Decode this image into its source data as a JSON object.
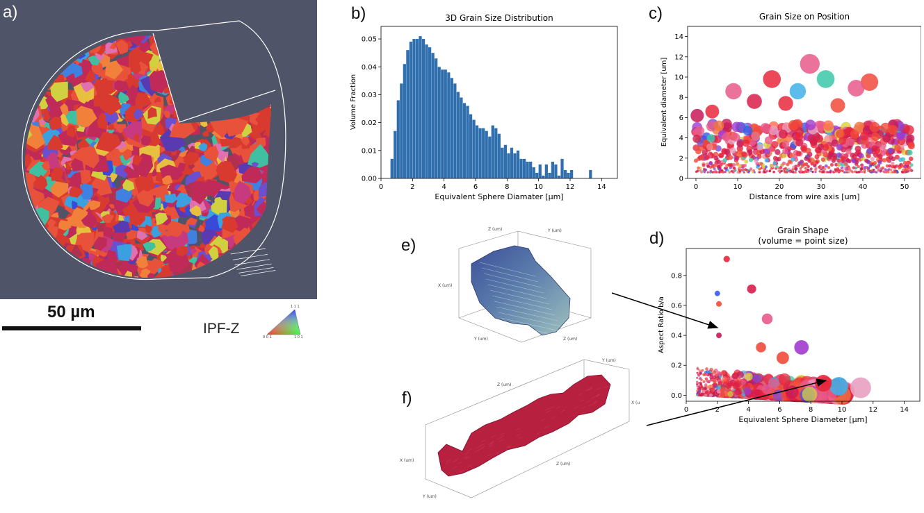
{
  "panels": {
    "a": {
      "letter": "a)",
      "scale_label": "50 µm",
      "legend_label": "IPF-Z"
    },
    "b": {
      "letter": "b)"
    },
    "c": {
      "letter": "c)"
    },
    "d": {
      "letter": "d)"
    },
    "e": {
      "letter": "e)",
      "axis_labels": {
        "x": "X (um)",
        "y": "Y (um)",
        "z": "Z (um)"
      }
    },
    "f": {
      "letter": "f)",
      "axis_labels": {
        "x": "X (um)",
        "y": "Y (um)",
        "z": "Z (um)"
      }
    }
  },
  "colors": {
    "hist": "#2f6fae",
    "microstructure_bg": "#4f5468",
    "grain_red": "#c8203a"
  },
  "chart_data": [
    {
      "id": "b",
      "type": "bar",
      "title": "3D Grain Size Distribution",
      "xlabel": "Equivalent Sphere Diamater [µm]",
      "ylabel": "Volume Fraction",
      "xlim": [
        0,
        15
      ],
      "ylim": [
        0,
        0.0545
      ],
      "xticks": [
        0,
        2,
        4,
        6,
        8,
        10,
        12,
        14
      ],
      "yticks": [
        0.0,
        0.01,
        0.02,
        0.03,
        0.04,
        0.05
      ],
      "ytick_labels": [
        "0.00",
        "0.01",
        "0.02",
        "0.03",
        "0.04",
        "0.05"
      ],
      "bin_width": 0.2,
      "bin_start": 0.6,
      "values": [
        0.007,
        0.017,
        0.028,
        0.034,
        0.041,
        0.046,
        0.049,
        0.05,
        0.05,
        0.051,
        0.05,
        0.048,
        0.047,
        0.045,
        0.043,
        0.04,
        0.039,
        0.039,
        0.038,
        0.036,
        0.034,
        0.031,
        0.029,
        0.027,
        0.026,
        0.023,
        0.021,
        0.019,
        0.018,
        0.018,
        0.017,
        0.015,
        0.019,
        0.018,
        0.016,
        0.011,
        0.012,
        0.009,
        0.011,
        0.009,
        0.01,
        0.007,
        0.007,
        0.006,
        0.006,
        0.004,
        0.002,
        0.005,
        0.001,
        0.005,
        0.002,
        0.006,
        0.005,
        0.001,
        0.007,
        0.003,
        0.002,
        0.003,
        0.0,
        0.0,
        0.0,
        0.0,
        0.0,
        0.003
      ]
    },
    {
      "id": "c",
      "type": "scatter",
      "title": "Grain Size on Position",
      "xlabel": "Distance from wire axis [um]",
      "ylabel": "Equivalent diameter [um]",
      "xlim": [
        -2,
        54
      ],
      "ylim": [
        0,
        15
      ],
      "xticks": [
        0,
        10,
        20,
        30,
        40,
        50
      ],
      "yticks": [
        0,
        2,
        4,
        6,
        8,
        10,
        12,
        14
      ],
      "highlighted_points": [
        {
          "x": 27.3,
          "y": 11.3
        },
        {
          "x": 18.2,
          "y": 9.8
        },
        {
          "x": 41.6,
          "y": 9.5
        },
        {
          "x": 31.1,
          "y": 9.8
        },
        {
          "x": 38.4,
          "y": 8.9
        },
        {
          "x": 9.0,
          "y": 8.6
        },
        {
          "x": 24.4,
          "y": 8.6
        },
        {
          "x": 3.9,
          "y": 6.6
        },
        {
          "x": 0.3,
          "y": 6.2
        },
        {
          "x": 14.0,
          "y": 7.6
        },
        {
          "x": 21.5,
          "y": 7.4
        },
        {
          "x": 34.0,
          "y": 7.2
        }
      ]
    },
    {
      "id": "d",
      "type": "scatter",
      "title": "Grain Shape",
      "subtitle": "(volume = point size)",
      "xlabel": "Equivalent Sphere Diameter [µm]",
      "ylabel": "Aspect Ratio b/a",
      "xlim": [
        0,
        15
      ],
      "ylim": [
        -0.04,
        0.98
      ],
      "xticks": [
        0,
        2,
        4,
        6,
        8,
        10,
        12,
        14
      ],
      "yticks": [
        0.0,
        0.2,
        0.4,
        0.6,
        0.8
      ],
      "highlighted_points": [
        {
          "x": 2.6,
          "y": 0.91
        },
        {
          "x": 4.2,
          "y": 0.71
        },
        {
          "x": 2.0,
          "y": 0.68
        },
        {
          "x": 2.1,
          "y": 0.61
        },
        {
          "x": 5.2,
          "y": 0.51
        },
        {
          "x": 2.1,
          "y": 0.4
        },
        {
          "x": 7.4,
          "y": 0.32
        },
        {
          "x": 4.8,
          "y": 0.32
        },
        {
          "x": 6.2,
          "y": 0.25
        },
        {
          "x": 11.2,
          "y": 0.05
        },
        {
          "x": 9.8,
          "y": 0.06
        },
        {
          "x": 8.8,
          "y": 0.08
        }
      ]
    }
  ]
}
